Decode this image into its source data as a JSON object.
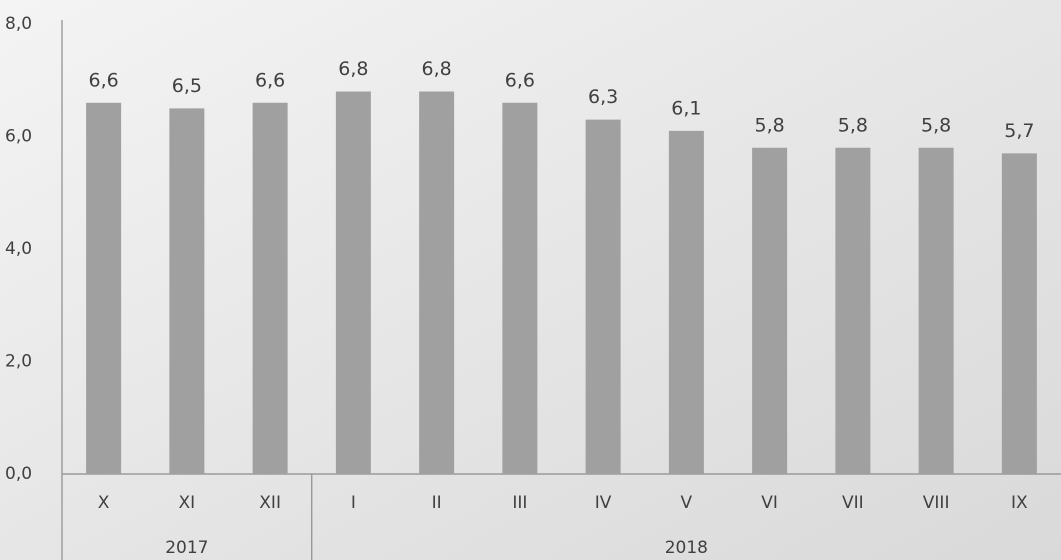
{
  "chart_data": {
    "type": "bar",
    "groups": [
      {
        "label": "2017",
        "categories": [
          "X",
          "XI",
          "XII"
        ]
      },
      {
        "label": "2018",
        "categories": [
          "I",
          "II",
          "III",
          "IV",
          "V",
          "VI",
          "VII",
          "VIII",
          "IX"
        ]
      }
    ],
    "values": [
      6.6,
      6.5,
      6.6,
      6.8,
      6.8,
      6.6,
      6.3,
      6.1,
      5.8,
      5.8,
      5.8,
      5.7
    ],
    "value_labels": [
      "6,6",
      "6,5",
      "6,6",
      "6,8",
      "6,8",
      "6,6",
      "6,3",
      "6,1",
      "5,8",
      "5,8",
      "5,8",
      "5,7"
    ],
    "color": "#a0a0a0",
    "ylim": [
      0,
      8
    ],
    "yticks": [
      {
        "value": 0,
        "label": "0,0"
      },
      {
        "value": 2,
        "label": "2,0"
      },
      {
        "value": 4,
        "label": "4,0"
      },
      {
        "value": 6,
        "label": "6,0"
      },
      {
        "value": 8,
        "label": "8,0"
      }
    ],
    "grid": false
  }
}
